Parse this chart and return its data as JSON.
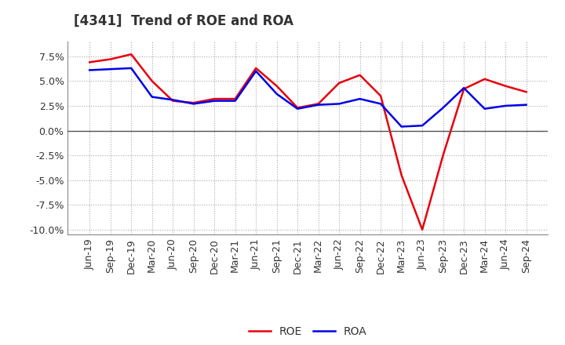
{
  "title": "[4341]  Trend of ROE and ROA",
  "x_labels": [
    "Jun-19",
    "Sep-19",
    "Dec-19",
    "Mar-20",
    "Jun-20",
    "Sep-20",
    "Dec-20",
    "Mar-21",
    "Jun-21",
    "Sep-21",
    "Dec-21",
    "Mar-22",
    "Jun-22",
    "Sep-22",
    "Dec-22",
    "Mar-23",
    "Jun-23",
    "Sep-23",
    "Dec-23",
    "Mar-24",
    "Jun-24",
    "Sep-24"
  ],
  "roe": [
    6.9,
    7.2,
    7.7,
    5.0,
    3.0,
    2.8,
    3.2,
    3.2,
    6.3,
    4.5,
    2.3,
    2.7,
    4.8,
    5.6,
    3.5,
    -4.5,
    -10.0,
    -2.5,
    4.2,
    5.2,
    4.5,
    3.9
  ],
  "roa": [
    6.1,
    6.2,
    6.3,
    3.4,
    3.1,
    2.7,
    3.0,
    3.0,
    6.0,
    3.7,
    2.2,
    2.6,
    2.7,
    3.2,
    2.7,
    0.4,
    0.5,
    2.3,
    4.3,
    2.2,
    2.5,
    2.6
  ],
  "roe_color": "#e8000d",
  "roa_color": "#0000e8",
  "ylim": [
    -10.5,
    9.0
  ],
  "yticks": [
    -10.0,
    -7.5,
    -5.0,
    -2.5,
    0.0,
    2.5,
    5.0,
    7.5
  ],
  "background_color": "#ffffff",
  "grid_color": "#aaaaaa",
  "line_width": 1.8,
  "title_fontsize": 12,
  "tick_fontsize": 9,
  "legend_fontsize": 10
}
